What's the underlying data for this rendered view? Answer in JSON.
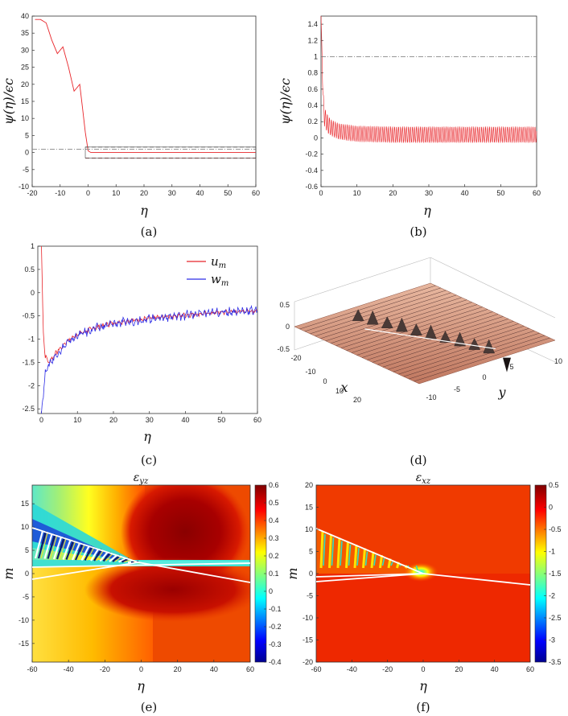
{
  "figure": {
    "captions": [
      "(a)",
      "(b)",
      "(c)",
      "(d)",
      "(e)",
      "(f)"
    ]
  },
  "chart_data": [
    {
      "id": "a",
      "type": "line",
      "xlabel": "η",
      "ylabel": "ψ(η)/ϵc",
      "xlim": [
        -20,
        60
      ],
      "ylim": [
        -10,
        40
      ],
      "xticks": [
        -20,
        -10,
        0,
        10,
        20,
        30,
        40,
        50,
        60
      ],
      "yticks": [
        -10,
        -5,
        0,
        5,
        10,
        15,
        20,
        25,
        30,
        35,
        40
      ],
      "series": [
        {
          "name": "psi",
          "color": "#e8252a",
          "x": [
            -19,
            -17,
            -15,
            -13,
            -11,
            -9,
            -7,
            -5,
            -3,
            -2,
            -1,
            0,
            1,
            5,
            10,
            20,
            30,
            40,
            50,
            60
          ],
          "y": [
            39,
            39,
            38,
            33,
            29,
            31,
            25,
            18,
            20,
            13,
            6,
            0.5,
            0,
            0,
            0,
            0,
            0,
            0,
            0,
            0
          ]
        },
        {
          "name": "reference",
          "color": "#888888",
          "style": "dashdot",
          "x": [
            -20,
            60
          ],
          "y": [
            1,
            1
          ]
        },
        {
          "name": "upper-bound",
          "color": "#555555",
          "style": "dashed",
          "x": [
            -1,
            60
          ],
          "y": [
            1.6,
            1.6
          ]
        },
        {
          "name": "lower-bound",
          "color": "#7a1010",
          "style": "dashed",
          "x": [
            -1,
            60
          ],
          "y": [
            -1.6,
            -1.6
          ]
        }
      ]
    },
    {
      "id": "b",
      "type": "line",
      "xlabel": "η",
      "ylabel": "ψ(η)/ϵc",
      "xlim": [
        0,
        60
      ],
      "ylim": [
        -0.6,
        1.5
      ],
      "xticks": [
        0,
        10,
        20,
        30,
        40,
        50,
        60
      ],
      "yticks": [
        -0.6,
        -0.4,
        -0.2,
        0,
        0.2,
        0.4,
        0.6,
        0.8,
        1,
        1.2,
        1.4
      ],
      "series": [
        {
          "name": "psi",
          "color": "#e8252a",
          "oscillation_period": 0.55,
          "x": [
            0,
            0.3,
            0.6,
            1,
            2,
            3,
            5,
            10,
            20,
            40,
            60
          ],
          "mean": [
            1.5,
            1.0,
            0.45,
            0.25,
            0.16,
            0.12,
            0.08,
            0.05,
            0.04,
            0.04,
            0.04
          ],
          "amplitude": [
            0,
            0.1,
            0.12,
            0.12,
            0.11,
            0.1,
            0.1,
            0.1,
            0.1,
            0.1,
            0.1
          ]
        },
        {
          "name": "reference",
          "color": "#888888",
          "style": "dashdot",
          "x": [
            0,
            60
          ],
          "y": [
            1,
            1
          ]
        }
      ]
    },
    {
      "id": "c",
      "type": "line",
      "xlabel": "η",
      "xlim": [
        -1,
        60
      ],
      "ylim": [
        -2.6,
        1
      ],
      "xticks": [
        0,
        10,
        20,
        30,
        40,
        50,
        60
      ],
      "yticks": [
        -2.5,
        -2,
        -1.5,
        -1,
        -0.5,
        0,
        0.5,
        1
      ],
      "legend": "top-right",
      "series": [
        {
          "name": "u",
          "sub": "m",
          "color": "#e8252a",
          "x": [
            0,
            0.5,
            1,
            2,
            4,
            7,
            10,
            15,
            20,
            30,
            40,
            50,
            60
          ],
          "mean": [
            1,
            -0.8,
            -1.35,
            -1.5,
            -1.3,
            -1.05,
            -0.9,
            -0.75,
            -0.65,
            -0.55,
            -0.48,
            -0.42,
            -0.38
          ],
          "amplitude": 0.05
        },
        {
          "name": "w",
          "sub": "m",
          "color": "#2c2ce6",
          "x": [
            0,
            0.5,
            1,
            2,
            4,
            7,
            10,
            15,
            20,
            30,
            40,
            50,
            60
          ],
          "mean": [
            -2.6,
            -2.2,
            -1.75,
            -1.55,
            -1.35,
            -1.1,
            -0.92,
            -0.77,
            -0.67,
            -0.56,
            -0.48,
            -0.42,
            -0.38
          ],
          "amplitude": 0.09
        }
      ]
    },
    {
      "id": "d",
      "type": "surface",
      "xlabel": "x",
      "ylabel": "y",
      "x_range": [
        -20,
        20
      ],
      "y_range": [
        -10,
        10
      ],
      "z_range": [
        -0.5,
        0.5
      ],
      "xticks": [
        -20,
        -10,
        0,
        10,
        20
      ],
      "yticks": [
        -10,
        -5,
        0,
        5,
        10
      ],
      "zticks": [
        -0.5,
        0,
        0.5
      ]
    },
    {
      "id": "e",
      "type": "heatmap",
      "title": "εyz",
      "title_sub": "yz",
      "xlabel": "η",
      "ylabel": "m",
      "xlim": [
        -60,
        60
      ],
      "ylim": [
        -19,
        19
      ],
      "xticks": [
        -60,
        -40,
        -20,
        0,
        20,
        40,
        60
      ],
      "yticks": [
        -15,
        -10,
        -5,
        0,
        5,
        10,
        15
      ],
      "colorbar": {
        "min": -0.4,
        "max": 0.6,
        "ticks": [
          -0.4,
          -0.3,
          -0.2,
          -0.1,
          0,
          0.1,
          0.2,
          0.3,
          0.4,
          0.5,
          0.6
        ]
      }
    },
    {
      "id": "f",
      "type": "heatmap",
      "title": "εxz",
      "title_sub": "xz",
      "xlabel": "η",
      "ylabel": "m",
      "xlim": [
        -60,
        60
      ],
      "ylim": [
        -20,
        20
      ],
      "xticks": [
        -60,
        -40,
        -20,
        0,
        20,
        40,
        60
      ],
      "yticks": [
        -20,
        -15,
        -10,
        -5,
        0,
        5,
        10,
        15,
        20
      ],
      "colorbar": {
        "min": -3.5,
        "max": 0.5,
        "ticks": [
          -3.5,
          -3,
          -2.5,
          -2,
          -1.5,
          -1,
          -0.5,
          0,
          0.5
        ]
      }
    }
  ]
}
